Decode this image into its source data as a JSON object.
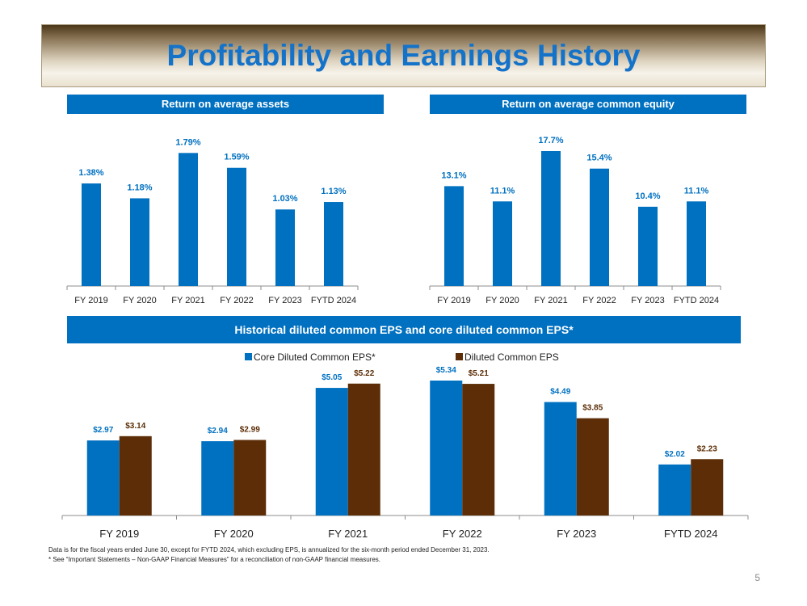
{
  "title": "Profitability and Earnings History",
  "colors": {
    "blue": "#0070c0",
    "brown": "#5c2d06",
    "title_blue": "#1473c9"
  },
  "chart_data": [
    {
      "type": "bar",
      "title": "Return on average assets",
      "categories": [
        "FY 2019",
        "FY 2020",
        "FY 2021",
        "FY 2022",
        "FY 2023",
        "FYTD 2024"
      ],
      "values": [
        1.38,
        1.18,
        1.79,
        1.59,
        1.03,
        1.13
      ],
      "value_labels": [
        "1.38%",
        "1.18%",
        "1.79%",
        "1.59%",
        "1.03%",
        "1.13%"
      ],
      "ylim": [
        0,
        2.0
      ],
      "unit": "%"
    },
    {
      "type": "bar",
      "title": "Return on average common equity",
      "categories": [
        "FY 2019",
        "FY 2020",
        "FY 2021",
        "FY 2022",
        "FY 2023",
        "FYTD 2024"
      ],
      "values": [
        13.1,
        11.1,
        17.7,
        15.4,
        10.4,
        11.1
      ],
      "value_labels": [
        "13.1%",
        "11.1%",
        "17.7%",
        "15.4%",
        "10.4%",
        "11.1%"
      ],
      "ylim": [
        0,
        19.5
      ],
      "unit": "%"
    },
    {
      "type": "bar",
      "title": "Historical diluted common EPS  and core diluted common EPS*",
      "categories": [
        "FY 2019",
        "FY 2020",
        "FY 2021",
        "FY 2022",
        "FY 2023",
        "FYTD 2024"
      ],
      "series": [
        {
          "name": "Core Diluted Common EPS*",
          "values": [
            2.97,
            2.94,
            5.05,
            5.34,
            4.49,
            2.02
          ],
          "labels": [
            "$2.97",
            "$2.94",
            "$5.05",
            "$5.34",
            "$4.49",
            "$2.02"
          ]
        },
        {
          "name": "Diluted Common EPS",
          "values": [
            3.14,
            2.99,
            5.22,
            5.21,
            3.85,
            2.23
          ],
          "labels": [
            "$3.14",
            "$2.99",
            "$5.22",
            "$5.21",
            "$3.85",
            "$2.23"
          ]
        }
      ],
      "ylim": [
        0,
        5.5
      ],
      "legend": "top-center"
    }
  ],
  "footnotes": [
    "Data is for the fiscal years ended June 30, except for FYTD 2024, which excluding EPS, is annualized for the six-month period ended December 31, 2023.",
    "* See “Important Statements – Non-GAAP Financial Measures” for a reconciliation of non-GAAP financial measures."
  ],
  "page_number": "5"
}
